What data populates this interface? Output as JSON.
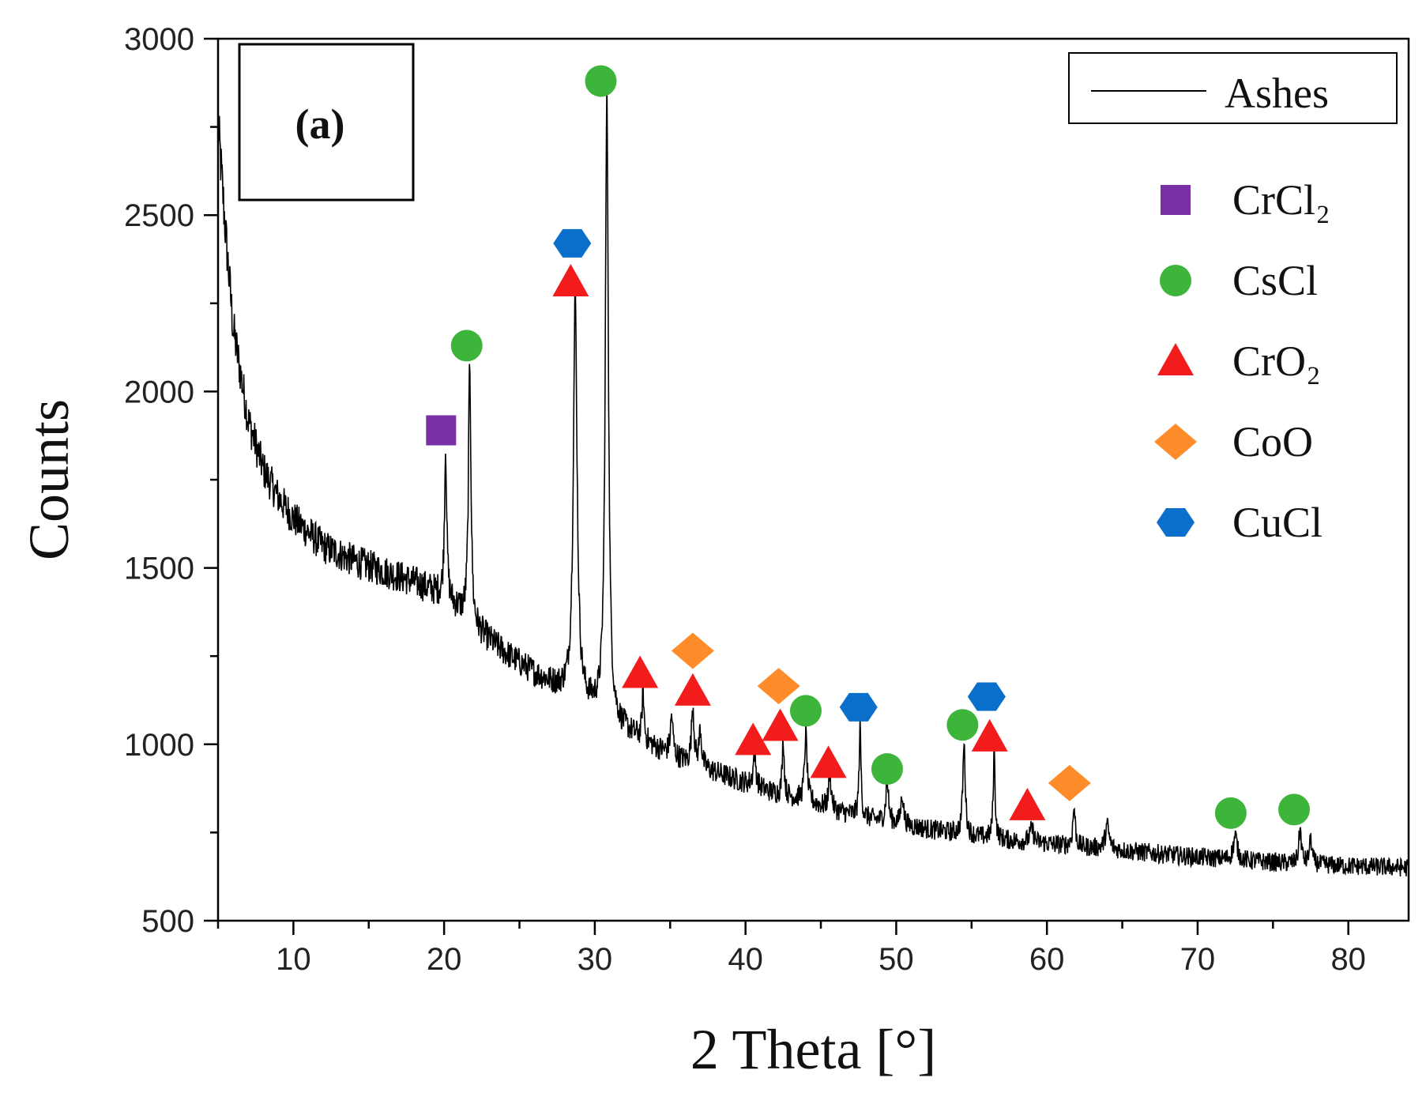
{
  "chart_data": {
    "type": "line",
    "panel_label": "(a)",
    "xlabel": "2 Theta [°]",
    "ylabel": "Counts",
    "xlim": [
      5,
      84
    ],
    "ylim": [
      500,
      3000
    ],
    "x_ticks": [
      10,
      20,
      30,
      40,
      50,
      60,
      70,
      80
    ],
    "y_ticks": [
      500,
      1000,
      1500,
      2000,
      2500,
      3000
    ],
    "series": [
      {
        "name": "Ashes",
        "color": "#000000",
        "baseline": [
          [
            5,
            2760
          ],
          [
            5.5,
            2450
          ],
          [
            6,
            2180
          ],
          [
            7,
            1920
          ],
          [
            8,
            1780
          ],
          [
            9,
            1700
          ],
          [
            10,
            1640
          ],
          [
            12,
            1560
          ],
          [
            14,
            1520
          ],
          [
            16,
            1490
          ],
          [
            18,
            1460
          ],
          [
            19.5,
            1430
          ],
          [
            21,
            1380
          ],
          [
            22,
            1330
          ],
          [
            24,
            1260
          ],
          [
            26,
            1200
          ],
          [
            28,
            1150
          ],
          [
            30,
            1100
          ],
          [
            32,
            1040
          ],
          [
            34,
            990
          ],
          [
            36,
            950
          ],
          [
            38,
            920
          ],
          [
            40,
            890
          ],
          [
            42,
            860
          ],
          [
            44,
            840
          ],
          [
            46,
            810
          ],
          [
            48,
            790
          ],
          [
            50,
            775
          ],
          [
            52,
            760
          ],
          [
            55,
            740
          ],
          [
            58,
            725
          ],
          [
            62,
            710
          ],
          [
            66,
            695
          ],
          [
            70,
            680
          ],
          [
            75,
            665
          ],
          [
            80,
            655
          ],
          [
            84,
            650
          ]
        ],
        "peaks": [
          [
            20.1,
            1840,
            0.18
          ],
          [
            21.7,
            2080,
            0.2
          ],
          [
            28.7,
            2270,
            0.3
          ],
          [
            30.8,
            2840,
            0.25
          ],
          [
            33.2,
            1150,
            0.15
          ],
          [
            35.1,
            1080,
            0.2
          ],
          [
            36.5,
            1110,
            0.2
          ],
          [
            37.0,
            1040,
            0.2
          ],
          [
            40.6,
            980,
            0.2
          ],
          [
            42.5,
            1020,
            0.15
          ],
          [
            44.0,
            1030,
            0.2
          ],
          [
            45.6,
            920,
            0.2
          ],
          [
            47.6,
            1050,
            0.15
          ],
          [
            49.4,
            900,
            0.2
          ],
          [
            50.4,
            860,
            0.2
          ],
          [
            54.5,
            1000,
            0.2
          ],
          [
            56.5,
            980,
            0.15
          ],
          [
            59.0,
            760,
            0.3
          ],
          [
            61.8,
            820,
            0.2
          ],
          [
            64.0,
            770,
            0.3
          ],
          [
            72.5,
            740,
            0.3
          ],
          [
            76.8,
            760,
            0.2
          ],
          [
            77.5,
            730,
            0.2
          ]
        ]
      }
    ],
    "legend": {
      "line_entry": "Ashes",
      "placement": "top-right",
      "phases": [
        {
          "name": "CrCl₂",
          "marker": "square",
          "color": "#7B2FA6"
        },
        {
          "name": "CsCl",
          "marker": "circle",
          "color": "#3DB53B"
        },
        {
          "name": "CrO₂",
          "marker": "triangle",
          "color": "#F21C1C"
        },
        {
          "name": "CoO",
          "marker": "diamond",
          "color": "#FF8C2A"
        },
        {
          "name": "CuCl",
          "marker": "hexagon",
          "color": "#0A6FCB"
        }
      ]
    },
    "peak_markers": [
      {
        "phase": "CrCl₂",
        "x": 19.8,
        "y": 1890
      },
      {
        "phase": "CsCl",
        "x": 21.5,
        "y": 2130
      },
      {
        "phase": "CsCl",
        "x": 30.4,
        "y": 2880
      },
      {
        "phase": "CsCl",
        "x": 44.0,
        "y": 1095
      },
      {
        "phase": "CsCl",
        "x": 49.4,
        "y": 930
      },
      {
        "phase": "CsCl",
        "x": 54.4,
        "y": 1055
      },
      {
        "phase": "CsCl",
        "x": 72.2,
        "y": 805
      },
      {
        "phase": "CsCl",
        "x": 76.4,
        "y": 815
      },
      {
        "phase": "CrO₂",
        "x": 28.4,
        "y": 2310
      },
      {
        "phase": "CrO₂",
        "x": 33.0,
        "y": 1200
      },
      {
        "phase": "CrO₂",
        "x": 36.5,
        "y": 1150
      },
      {
        "phase": "CrO₂",
        "x": 40.5,
        "y": 1010
      },
      {
        "phase": "CrO₂",
        "x": 42.3,
        "y": 1050
      },
      {
        "phase": "CrO₂",
        "x": 45.5,
        "y": 945
      },
      {
        "phase": "CrO₂",
        "x": 56.2,
        "y": 1020
      },
      {
        "phase": "CrO₂",
        "x": 58.7,
        "y": 825
      },
      {
        "phase": "CoO",
        "x": 36.5,
        "y": 1265
      },
      {
        "phase": "CoO",
        "x": 42.2,
        "y": 1165
      },
      {
        "phase": "CoO",
        "x": 61.5,
        "y": 890
      },
      {
        "phase": "CuCl",
        "x": 28.5,
        "y": 2420
      },
      {
        "phase": "CuCl",
        "x": 47.5,
        "y": 1105
      },
      {
        "phase": "CuCl",
        "x": 56.0,
        "y": 1135
      }
    ],
    "grid": false
  }
}
